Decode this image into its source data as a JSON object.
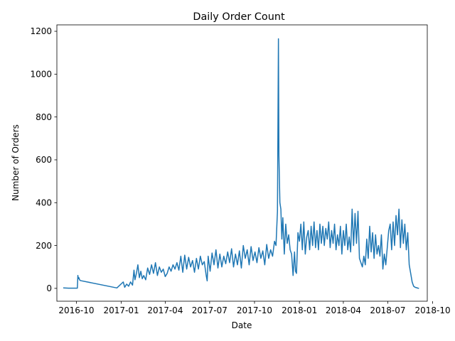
{
  "chart_data": {
    "type": "line",
    "title": "Daily Order Count",
    "xlabel": "Date",
    "ylabel": "Number of Orders",
    "xlim": [
      "2016-08-22",
      "2018-09-20"
    ],
    "ylim": [
      -60,
      1230
    ],
    "grid": false,
    "legend": "none",
    "x_ticks": [
      "2016-10",
      "2017-01",
      "2017-04",
      "2017-07",
      "2017-10",
      "2018-01",
      "2018-04",
      "2018-07",
      "2018-10"
    ],
    "y_ticks": [
      0,
      200,
      400,
      600,
      800,
      1000,
      1200
    ],
    "series": [
      {
        "color": "#1f77b4",
        "x": [
          "2016-09-04",
          "2016-09-15",
          "2016-10-03",
          "2016-10-04",
          "2016-10-05",
          "2016-10-06",
          "2016-10-08",
          "2016-10-10",
          "2016-12-23",
          "2017-01-05",
          "2017-01-08",
          "2017-01-12",
          "2017-01-16",
          "2017-01-20",
          "2017-01-24",
          "2017-01-27",
          "2017-01-29",
          "2017-02-01",
          "2017-02-04",
          "2017-02-07",
          "2017-02-10",
          "2017-02-13",
          "2017-02-16",
          "2017-02-20",
          "2017-02-24",
          "2017-02-28",
          "2017-03-04",
          "2017-03-08",
          "2017-03-12",
          "2017-03-16",
          "2017-03-20",
          "2017-03-24",
          "2017-03-28",
          "2017-04-01",
          "2017-04-05",
          "2017-04-09",
          "2017-04-13",
          "2017-04-17",
          "2017-04-21",
          "2017-04-25",
          "2017-04-29",
          "2017-05-03",
          "2017-05-07",
          "2017-05-11",
          "2017-05-15",
          "2017-05-19",
          "2017-05-23",
          "2017-05-27",
          "2017-05-31",
          "2017-06-04",
          "2017-06-08",
          "2017-06-12",
          "2017-06-16",
          "2017-06-20",
          "2017-06-24",
          "2017-06-26",
          "2017-06-28",
          "2017-07-02",
          "2017-07-06",
          "2017-07-10",
          "2017-07-14",
          "2017-07-18",
          "2017-07-22",
          "2017-07-26",
          "2017-07-30",
          "2017-08-03",
          "2017-08-07",
          "2017-08-11",
          "2017-08-15",
          "2017-08-19",
          "2017-08-23",
          "2017-08-27",
          "2017-08-31",
          "2017-09-04",
          "2017-09-08",
          "2017-09-12",
          "2017-09-16",
          "2017-09-20",
          "2017-09-24",
          "2017-09-28",
          "2017-10-02",
          "2017-10-06",
          "2017-10-10",
          "2017-10-14",
          "2017-10-18",
          "2017-10-22",
          "2017-10-26",
          "2017-10-30",
          "2017-11-03",
          "2017-11-07",
          "2017-11-11",
          "2017-11-14",
          "2017-11-17",
          "2017-11-19",
          "2017-11-20",
          "2017-11-22",
          "2017-11-24",
          "2017-11-26",
          "2017-11-28",
          "2017-12-01",
          "2017-12-04",
          "2017-12-07",
          "2017-12-10",
          "2017-12-13",
          "2017-12-16",
          "2017-12-19",
          "2017-12-22",
          "2017-12-24",
          "2017-12-26",
          "2017-12-29",
          "2018-01-01",
          "2018-01-04",
          "2018-01-07",
          "2018-01-10",
          "2018-01-13",
          "2018-01-16",
          "2018-01-19",
          "2018-01-22",
          "2018-01-25",
          "2018-01-28",
          "2018-01-31",
          "2018-02-03",
          "2018-02-06",
          "2018-02-09",
          "2018-02-12",
          "2018-02-15",
          "2018-02-18",
          "2018-02-21",
          "2018-02-24",
          "2018-02-27",
          "2018-03-02",
          "2018-03-05",
          "2018-03-08",
          "2018-03-11",
          "2018-03-14",
          "2018-03-17",
          "2018-03-20",
          "2018-03-23",
          "2018-03-26",
          "2018-03-29",
          "2018-04-01",
          "2018-04-04",
          "2018-04-07",
          "2018-04-10",
          "2018-04-13",
          "2018-04-16",
          "2018-04-19",
          "2018-04-22",
          "2018-04-25",
          "2018-04-28",
          "2018-05-01",
          "2018-05-04",
          "2018-05-07",
          "2018-05-10",
          "2018-05-13",
          "2018-05-16",
          "2018-05-19",
          "2018-05-22",
          "2018-05-25",
          "2018-05-28",
          "2018-05-31",
          "2018-06-03",
          "2018-06-06",
          "2018-06-09",
          "2018-06-12",
          "2018-06-15",
          "2018-06-18",
          "2018-06-21",
          "2018-06-24",
          "2018-06-27",
          "2018-06-30",
          "2018-07-03",
          "2018-07-06",
          "2018-07-09",
          "2018-07-12",
          "2018-07-15",
          "2018-07-18",
          "2018-07-21",
          "2018-07-24",
          "2018-07-27",
          "2018-07-30",
          "2018-08-02",
          "2018-08-05",
          "2018-08-08",
          "2018-08-11",
          "2018-08-14",
          "2018-08-17",
          "2018-08-20",
          "2018-08-23",
          "2018-08-26",
          "2018-08-29",
          "2018-09-01",
          "2018-09-03"
        ],
        "y": [
          2,
          1,
          1,
          60,
          45,
          50,
          38,
          36,
          2,
          30,
          5,
          20,
          10,
          30,
          15,
          85,
          40,
          70,
          110,
          50,
          80,
          45,
          60,
          40,
          95,
          65,
          110,
          70,
          120,
          60,
          100,
          75,
          90,
          55,
          70,
          100,
          80,
          110,
          90,
          120,
          85,
          150,
          75,
          155,
          90,
          145,
          100,
          130,
          75,
          140,
          90,
          150,
          110,
          125,
          60,
          35,
          150,
          80,
          165,
          110,
          180,
          95,
          160,
          100,
          150,
          115,
          170,
          120,
          185,
          100,
          160,
          110,
          175,
          95,
          200,
          140,
          180,
          110,
          195,
          130,
          170,
          120,
          190,
          140,
          175,
          110,
          205,
          140,
          180,
          150,
          220,
          200,
          360,
          1165,
          620,
          400,
          370,
          230,
          330,
          160,
          300,
          210,
          250,
          180,
          160,
          60,
          170,
          80,
          70,
          260,
          220,
          300,
          180,
          310,
          160,
          240,
          270,
          180,
          290,
          200,
          310,
          190,
          270,
          180,
          300,
          210,
          290,
          200,
          280,
          230,
          310,
          190,
          270,
          210,
          300,
          180,
          250,
          200,
          290,
          160,
          270,
          200,
          300,
          180,
          240,
          170,
          370,
          200,
          350,
          210,
          360,
          140,
          120,
          100,
          150,
          110,
          230,
          140,
          290,
          170,
          260,
          140,
          250,
          160,
          200,
          150,
          250,
          90,
          160,
          110,
          190,
          270,
          300,
          180,
          310,
          200,
          340,
          250,
          370,
          190,
          320,
          210,
          300,
          180,
          260,
          110,
          70,
          30,
          10,
          5,
          3,
          1,
          0
        ]
      }
    ]
  }
}
